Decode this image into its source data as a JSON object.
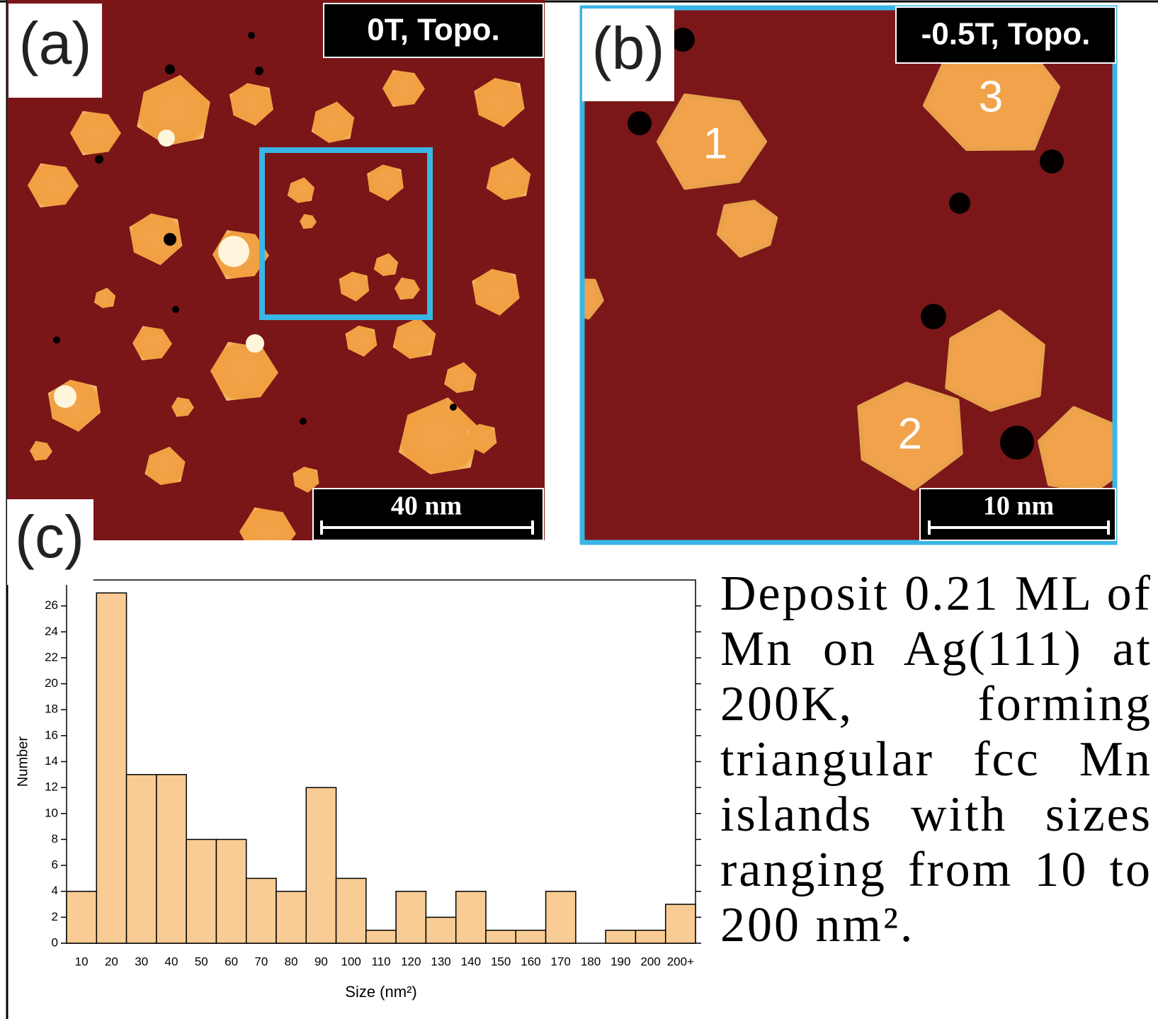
{
  "chart_data": {
    "type": "bar",
    "panel_label": "(c)",
    "x_label": "Size (nm²)",
    "y_label": "Number",
    "categories": [
      "10",
      "20",
      "30",
      "40",
      "50",
      "60",
      "70",
      "80",
      "90",
      "100",
      "110",
      "120",
      "130",
      "140",
      "150",
      "160",
      "170",
      "180",
      "190",
      "200",
      "200+"
    ],
    "values": [
      4,
      27,
      13,
      13,
      8,
      8,
      5,
      4,
      12,
      5,
      1,
      4,
      2,
      4,
      1,
      1,
      4,
      0,
      1,
      1,
      3
    ],
    "color": "#f8cc94",
    "ylim": [
      0,
      28
    ],
    "yticks": [
      0,
      2,
      4,
      6,
      8,
      10,
      12,
      14,
      16,
      18,
      20,
      22,
      24,
      26
    ],
    "grid": false
  },
  "images": [
    {
      "label": "(a)",
      "tag": "0T, Topo.",
      "scale_bar": "40 nm"
    },
    {
      "label": "(b)",
      "tag": "-0.5T, Topo.",
      "scale_bar": "10 nm",
      "island_numbers": [
        "1",
        "2",
        "3"
      ]
    }
  ],
  "caption": "Deposit 0.21 ML of Mn on Ag(111) at 200K, forming triangular fcc Mn islands with sizes ranging from 10 to 200 nm²."
}
